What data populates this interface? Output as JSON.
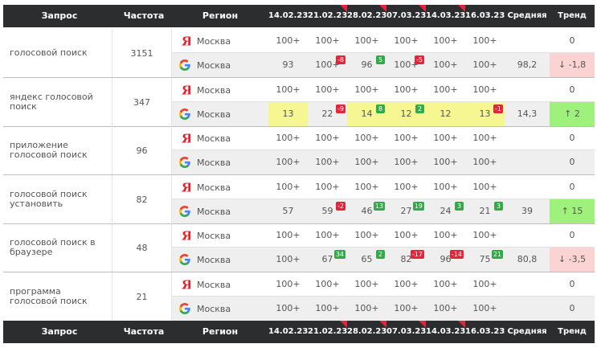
{
  "header": {
    "query": "Запрос",
    "freq": "Частота",
    "region": "Регион",
    "dates": [
      "14.02.23",
      "21.02.23",
      "28.02.23",
      "07.03.23",
      "14.03.23",
      "16.03.23"
    ],
    "date_flags": [
      false,
      true,
      true,
      true,
      true,
      false
    ],
    "avg": "Средняя",
    "trend": "Тренд"
  },
  "colors": {
    "header_bg": "#2c2d2f",
    "highlight": "#f6f793",
    "trend_up": "#9ef27c",
    "trend_down": "#fbd3d3",
    "badge_neg": "#e0263a",
    "badge_pos": "#33a94a"
  },
  "groups": [
    {
      "query": "голосовой поиск",
      "freq": "3151",
      "rows": [
        {
          "engine": "yandex",
          "region": "Москва",
          "values": [
            "100+",
            "100+",
            "100+",
            "100+",
            "100+",
            "100+"
          ],
          "badges": [
            null,
            null,
            null,
            null,
            null,
            null
          ],
          "highlights": [
            false,
            false,
            false,
            false,
            false,
            false
          ],
          "avg": "",
          "trend": "0",
          "trend_dir": "none"
        },
        {
          "engine": "google",
          "region": "Москва",
          "values": [
            "93",
            "100+",
            "96",
            "100+",
            "100+",
            "100+"
          ],
          "badges": [
            null,
            "-8",
            "5",
            "-5",
            null,
            null
          ],
          "highlights": [
            false,
            false,
            false,
            false,
            false,
            false
          ],
          "avg": "98,2",
          "trend": "↓ -1,8",
          "trend_dir": "down"
        }
      ]
    },
    {
      "query": "яндекс голосовой поиск",
      "freq": "347",
      "rows": [
        {
          "engine": "yandex",
          "region": "Москва",
          "values": [
            "100+",
            "100+",
            "100+",
            "100+",
            "100+",
            "100+"
          ],
          "badges": [
            null,
            null,
            null,
            null,
            null,
            null
          ],
          "highlights": [
            false,
            false,
            false,
            false,
            false,
            false
          ],
          "avg": "",
          "trend": "0",
          "trend_dir": "none"
        },
        {
          "engine": "google",
          "region": "Москва",
          "values": [
            "13",
            "22",
            "14",
            "12",
            "12",
            "13"
          ],
          "badges": [
            null,
            "-9",
            "8",
            "2",
            null,
            "-1"
          ],
          "highlights": [
            true,
            false,
            true,
            true,
            true,
            true
          ],
          "avg": "14,3",
          "trend": "↑ 2",
          "trend_dir": "up"
        }
      ]
    },
    {
      "query": "приложение голосовой поиск",
      "freq": "96",
      "rows": [
        {
          "engine": "yandex",
          "region": "Москва",
          "values": [
            "100+",
            "100+",
            "100+",
            "100+",
            "100+",
            "100+"
          ],
          "badges": [
            null,
            null,
            null,
            null,
            null,
            null
          ],
          "highlights": [
            false,
            false,
            false,
            false,
            false,
            false
          ],
          "avg": "",
          "trend": "0",
          "trend_dir": "none"
        },
        {
          "engine": "google",
          "region": "Москва",
          "values": [
            "100+",
            "100+",
            "100+",
            "100+",
            "100+",
            "100+"
          ],
          "badges": [
            null,
            null,
            null,
            null,
            null,
            null
          ],
          "highlights": [
            false,
            false,
            false,
            false,
            false,
            false
          ],
          "avg": "",
          "trend": "0",
          "trend_dir": "none"
        }
      ]
    },
    {
      "query": "голосовой поиск установить",
      "freq": "82",
      "rows": [
        {
          "engine": "yandex",
          "region": "Москва",
          "values": [
            "100+",
            "100+",
            "100+",
            "100+",
            "100+",
            "100+"
          ],
          "badges": [
            null,
            null,
            null,
            null,
            null,
            null
          ],
          "highlights": [
            false,
            false,
            false,
            false,
            false,
            false
          ],
          "avg": "",
          "trend": "0",
          "trend_dir": "none"
        },
        {
          "engine": "google",
          "region": "Москва",
          "values": [
            "57",
            "59",
            "46",
            "27",
            "24",
            "21"
          ],
          "badges": [
            null,
            "-2",
            "13",
            "19",
            "3",
            "3"
          ],
          "highlights": [
            false,
            false,
            false,
            false,
            false,
            false
          ],
          "avg": "39",
          "trend": "↑ 15",
          "trend_dir": "up"
        }
      ]
    },
    {
      "query": "голосовой поиск в браузере",
      "freq": "48",
      "rows": [
        {
          "engine": "yandex",
          "region": "Москва",
          "values": [
            "100+",
            "100+",
            "100+",
            "100+",
            "100+",
            "100+"
          ],
          "badges": [
            null,
            null,
            null,
            null,
            null,
            null
          ],
          "highlights": [
            false,
            false,
            false,
            false,
            false,
            false
          ],
          "avg": "",
          "trend": "0",
          "trend_dir": "none"
        },
        {
          "engine": "google",
          "region": "Москва",
          "values": [
            "100+",
            "67",
            "65",
            "82",
            "96",
            "75"
          ],
          "badges": [
            null,
            "34",
            "2",
            "-17",
            "-14",
            "21"
          ],
          "highlights": [
            false,
            false,
            false,
            false,
            false,
            false
          ],
          "avg": "80,8",
          "trend": "↓ -3,5",
          "trend_dir": "down"
        }
      ]
    },
    {
      "query": "программа голосовой поиск",
      "freq": "21",
      "rows": [
        {
          "engine": "yandex",
          "region": "Москва",
          "values": [
            "100+",
            "100+",
            "100+",
            "100+",
            "100+",
            "100+"
          ],
          "badges": [
            null,
            null,
            null,
            null,
            null,
            null
          ],
          "highlights": [
            false,
            false,
            false,
            false,
            false,
            false
          ],
          "avg": "",
          "trend": "0",
          "trend_dir": "none"
        },
        {
          "engine": "google",
          "region": "Москва",
          "values": [
            "100+",
            "100+",
            "100+",
            "100+",
            "100+",
            "100+"
          ],
          "badges": [
            null,
            null,
            null,
            null,
            null,
            null
          ],
          "highlights": [
            false,
            false,
            false,
            false,
            false,
            false
          ],
          "avg": "",
          "trend": "0",
          "trend_dir": "none"
        }
      ]
    }
  ]
}
